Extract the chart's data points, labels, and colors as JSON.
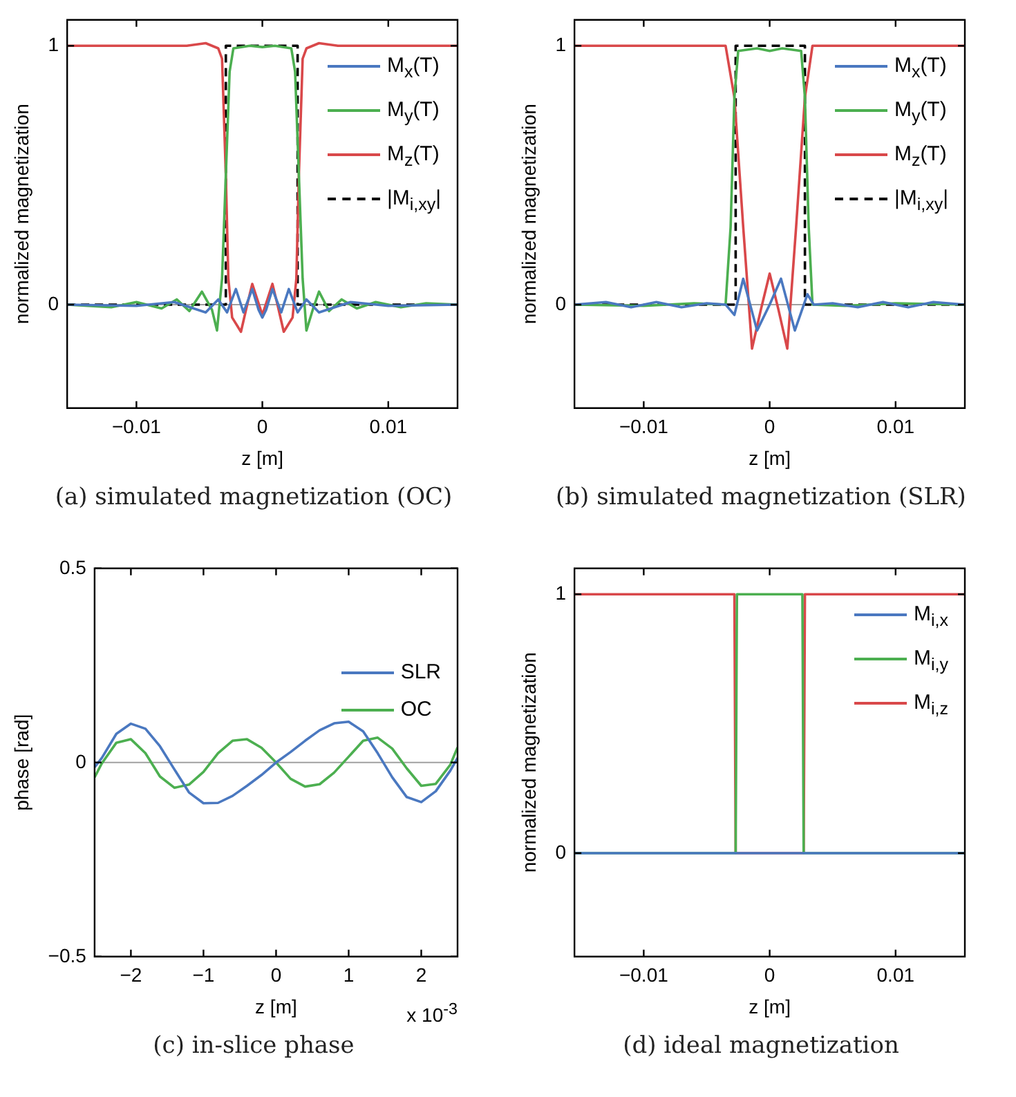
{
  "chart_data": [
    {
      "type": "line",
      "title": "(a) simulated magnetization (OC)",
      "xlabel": "z [m]",
      "ylabel": "normalized magnetization",
      "xlim": [
        -0.0155,
        0.0155
      ],
      "xticks": [
        {
          "value": -0.01,
          "label": "−0.01"
        },
        0,
        0.01
      ],
      "ylim": [
        -0.4,
        1.1
      ],
      "yticks": [
        0,
        1
      ],
      "legend": "top right",
      "ref_lines": [
        {
          "axis": "y",
          "value": 0,
          "color": "#a0a0a0"
        }
      ],
      "series": [
        {
          "name": "M$_{x}$(T)",
          "color": "#4a78c0",
          "x": [
            -0.0155,
            -0.01,
            -0.007,
            -0.0045,
            -0.0035,
            -0.0028,
            -0.0021,
            -0.0015,
            -0.0008,
            -0.0003,
            0,
            0.0003,
            0.0008,
            0.0015,
            0.0021,
            0.0028,
            0.0035,
            0.0045,
            0.007,
            0.01,
            0.0155
          ],
          "values": [
            0,
            -0.005,
            0.01,
            -0.03,
            0.02,
            -0.03,
            0.06,
            -0.03,
            0.06,
            -0.02,
            -0.05,
            -0.02,
            0.06,
            -0.03,
            0.06,
            -0.03,
            0.02,
            -0.03,
            0.01,
            -0.005,
            0
          ]
        },
        {
          "name": "M$_{y}$(T)",
          "color": "#4caf50",
          "x": [
            -0.0155,
            -0.012,
            -0.01,
            -0.008,
            -0.0068,
            -0.0058,
            -0.0048,
            -0.004,
            -0.0036,
            -0.0032,
            -0.0029,
            -0.0026,
            -0.0023,
            -0.001,
            0,
            0.001,
            0.0023,
            0.0026,
            0.0029,
            0.0032,
            0.0035,
            0.004,
            0.0045,
            0.0053,
            0.0063,
            0.0075,
            0.009,
            0.011,
            0.013,
            0.0155
          ],
          "values": [
            0,
            -0.01,
            0.01,
            -0.015,
            0.02,
            -0.025,
            0.05,
            -0.02,
            -0.1,
            0.1,
            0.5,
            0.9,
            0.99,
            1,
            0.995,
            1,
            0.99,
            0.9,
            0.5,
            0.1,
            -0.1,
            -0.02,
            0.05,
            -0.025,
            0.02,
            -0.015,
            0.01,
            -0.01,
            0.005,
            0
          ]
        },
        {
          "name": "M$_{z}$(T)",
          "color": "#d9484a",
          "x": [
            -0.0155,
            -0.006,
            -0.0045,
            -0.0035,
            -0.0032,
            -0.0029,
            -0.0027,
            -0.0024,
            -0.0017,
            -0.0012,
            -0.0008,
            -0.0004,
            0,
            0.0004,
            0.0008,
            0.0012,
            0.0017,
            0.0024,
            0.0027,
            0.0029,
            0.0032,
            0.0035,
            0.0045,
            0.006,
            0.0155
          ],
          "values": [
            1,
            1,
            1.01,
            0.99,
            0.95,
            0.5,
            0.1,
            -0.05,
            -0.105,
            0,
            0.08,
            0.02,
            -0.04,
            0.02,
            0.08,
            0,
            -0.105,
            -0.05,
            0.1,
            0.5,
            0.95,
            0.99,
            1.01,
            1,
            1
          ]
        },
        {
          "name": "|M$_{i,xy}$|",
          "color": "#000000",
          "line_style": "dashed",
          "x": [
            -0.0155,
            -0.0029,
            -0.0029,
            0.0028,
            0.0028,
            0.0155
          ],
          "values": [
            0,
            0,
            1,
            1,
            0,
            0
          ]
        }
      ]
    },
    {
      "type": "line",
      "title": "(b) simulated magnetization (SLR)",
      "xlabel": "z [m]",
      "ylabel": "normalized magnetization",
      "xlim": [
        -0.0155,
        0.0155
      ],
      "xticks": [
        {
          "value": -0.01,
          "label": "−0.01"
        },
        0,
        0.01
      ],
      "ylim": [
        -0.4,
        1.1
      ],
      "yticks": [
        0,
        1
      ],
      "legend": "top right",
      "ref_lines": [
        {
          "axis": "y",
          "value": 0,
          "color": "#a0a0a0"
        }
      ],
      "series": [
        {
          "name": "M$_{x}$(T)",
          "color": "#4a78c0",
          "x": [
            -0.0155,
            -0.013,
            -0.011,
            -0.009,
            -0.007,
            -0.005,
            -0.0035,
            -0.0028,
            -0.0021,
            -0.001,
            0,
            0.0009,
            0.002,
            0.003,
            0.0035,
            0.005,
            0.007,
            0.009,
            0.011,
            0.013,
            0.0155
          ],
          "values": [
            0,
            0.01,
            -0.01,
            0.01,
            -0.01,
            0.005,
            0,
            -0.04,
            0.1,
            -0.1,
            0,
            0.1,
            -0.1,
            0.04,
            0,
            0.005,
            -0.01,
            0.01,
            -0.01,
            0.01,
            0
          ]
        },
        {
          "name": "M$_{y}$(T)",
          "color": "#4caf50",
          "x": [
            -0.0155,
            -0.01,
            -0.006,
            -0.0035,
            -0.0031,
            -0.0028,
            -0.0025,
            -0.001,
            0,
            0.001,
            0.0025,
            0.0028,
            0.0031,
            0.0034,
            0.006,
            0.01,
            0.0155
          ],
          "values": [
            0,
            -0.005,
            0.005,
            0,
            0.3,
            0.8,
            0.98,
            0.99,
            0.98,
            0.99,
            0.98,
            0.8,
            0.3,
            0,
            -0.005,
            0.005,
            0
          ]
        },
        {
          "name": "M$_{z}$(T)",
          "color": "#d9484a",
          "x": [
            -0.0155,
            -0.0035,
            -0.0028,
            -0.0021,
            -0.0014,
            -0.0007,
            0,
            0.0007,
            0.0014,
            0.0021,
            0.0028,
            0.0034,
            0.0155
          ],
          "values": [
            1,
            1,
            0.8,
            0.3,
            -0.17,
            -0.02,
            0.12,
            -0.02,
            -0.17,
            0.3,
            0.8,
            1,
            1
          ]
        },
        {
          "name": "|M$_{i,xy}$|",
          "color": "#000000",
          "line_style": "dashed",
          "x": [
            -0.0155,
            -0.0027,
            -0.0027,
            0.0028,
            0.0028,
            0.0155
          ],
          "values": [
            0,
            0,
            1,
            1,
            0,
            0
          ]
        }
      ]
    },
    {
      "type": "line",
      "title": "(c) in-slice phase",
      "xlabel": "z [m]",
      "ylabel": "phase [rad]",
      "annotations": [
        "x 10$^{-3}$"
      ],
      "xlim": [
        -2.5,
        2.5
      ],
      "xticks": [
        {
          "value": -2,
          "label": "−2"
        },
        {
          "value": -1,
          "label": "−1"
        },
        0,
        1,
        2
      ],
      "ylim": [
        -0.5,
        0.5
      ],
      "yticks": [
        {
          "value": -0.5,
          "label": "−0.5"
        },
        0,
        0.5
      ],
      "legend": "right",
      "ref_lines": [
        {
          "axis": "y",
          "value": 0,
          "color": "#a0a0a0"
        }
      ],
      "x": [
        -2.5,
        -2.4,
        -2.2,
        -2.0,
        -1.8,
        -1.6,
        -1.4,
        -1.2,
        -1.0,
        -0.8,
        -0.6,
        -0.4,
        -0.2,
        0,
        0.2,
        0.4,
        0.6,
        0.8,
        1.0,
        1.2,
        1.4,
        1.6,
        1.8,
        2.0,
        2.2,
        2.4,
        2.5
      ],
      "series": [
        {
          "name": "SLR",
          "color": "#4a78c0",
          "values": [
            -0.012,
            0.012,
            0.074,
            0.1,
            0.087,
            0.042,
            -0.018,
            -0.077,
            -0.105,
            -0.104,
            -0.086,
            -0.06,
            -0.032,
            0,
            0.027,
            0.056,
            0.083,
            0.101,
            0.105,
            0.08,
            0.024,
            -0.038,
            -0.089,
            -0.102,
            -0.074,
            -0.021,
            0.012
          ]
        },
        {
          "name": "OC",
          "color": "#4caf50",
          "values": [
            -0.038,
            -0.002,
            0.051,
            0.06,
            0.024,
            -0.036,
            -0.065,
            -0.057,
            -0.024,
            0.024,
            0.056,
            0.06,
            0.038,
            0,
            -0.042,
            -0.062,
            -0.056,
            -0.026,
            0.015,
            0.056,
            0.064,
            0.036,
            -0.015,
            -0.06,
            -0.055,
            -0.006,
            0.039
          ]
        }
      ]
    },
    {
      "type": "line",
      "title": "(d) ideal magnetization",
      "xlabel": "z [m]",
      "ylabel": "normalized magnetization",
      "xlim": [
        -0.0155,
        0.0155
      ],
      "xticks": [
        {
          "value": -0.01,
          "label": "−0.01"
        },
        0,
        0.01
      ],
      "ylim": [
        -0.4,
        1.1
      ],
      "yticks": [
        0,
        1
      ],
      "legend": "top right",
      "series": [
        {
          "name": "M$_{i,x}$",
          "color": "#4a78c0",
          "x": [
            -0.0155,
            0.0155
          ],
          "values": [
            0,
            0
          ]
        },
        {
          "name": "M$_{i,y}$",
          "color": "#4caf50",
          "x": [
            -0.0155,
            -0.0027,
            -0.0026,
            0.0026,
            0.0027,
            0.0155
          ],
          "values": [
            0,
            0,
            1,
            1,
            0,
            0
          ]
        },
        {
          "name": "M$_{i,z}$",
          "color": "#d9484a",
          "x": [
            -0.0155,
            -0.0028,
            -0.0027,
            0.0027,
            0.0028,
            0.0155
          ],
          "values": [
            1,
            1,
            0,
            0,
            1,
            1
          ]
        }
      ]
    }
  ]
}
